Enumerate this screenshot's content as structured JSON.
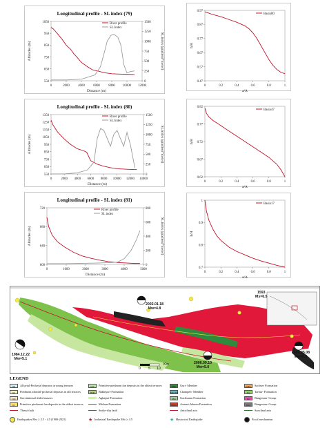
{
  "chart_data": [
    {
      "type": "line",
      "title": "Longitudinal profile - SL index (79)",
      "xlabel": "Distance (m)",
      "ylabel": "Altitudes (m)",
      "y2label": "SL index (gradient*meter)",
      "xlim": [
        0,
        12000
      ],
      "ylim": [
        550,
        1100
      ],
      "y2lim": [
        0,
        1500
      ],
      "xticks": [
        "0",
        "2000",
        "4000",
        "6000",
        "8000",
        "10000",
        "12000"
      ],
      "yticks": [
        "550",
        "650",
        "750",
        "850",
        "950",
        "1050"
      ],
      "y2ticks": [
        "0",
        "250",
        "500",
        "750",
        "1000",
        "1250",
        "1500"
      ],
      "legend": [
        "River profile",
        "SL Index"
      ],
      "colors": {
        "River profile": "#c0142a",
        "SL Index": "#9b9b9b"
      },
      "series": [
        {
          "name": "River profile",
          "axis": "left",
          "x": [
            0,
            300,
            800,
            1500,
            2000,
            2600,
            3000,
            3400,
            4000,
            4800,
            5500,
            6200,
            7000,
            8000,
            9000,
            10000,
            11000
          ],
          "y": [
            1045,
            1030,
            990,
            930,
            880,
            840,
            800,
            770,
            720,
            680,
            650,
            640,
            625,
            615,
            612,
            610,
            608
          ]
        },
        {
          "name": "SL Index",
          "axis": "right",
          "x": [
            0,
            2000,
            4000,
            5000,
            5800,
            6500,
            7000,
            7400,
            7900,
            8300,
            8800,
            9200,
            9600,
            10000,
            10400,
            11000
          ],
          "y": [
            20,
            20,
            40,
            100,
            150,
            350,
            700,
            1000,
            1150,
            1170,
            1100,
            900,
            400,
            200,
            230,
            250
          ]
        }
      ]
    },
    {
      "type": "line",
      "title": "Longitudinal profile - SL index (80)",
      "xlabel": "Distance (m)",
      "ylabel": "Altitudes (m)",
      "y2label": "SL index (gradient*meter)",
      "xlim": [
        0,
        14000
      ],
      "ylim": [
        550,
        1400
      ],
      "y2lim": [
        0,
        1500
      ],
      "xticks": [
        "0",
        "2000",
        "4000",
        "6000",
        "8000",
        "10000",
        "12000",
        "14000"
      ],
      "yticks": [
        "550",
        "650",
        "750",
        "850",
        "950",
        "1050",
        "1150",
        "1250",
        "1350"
      ],
      "y2ticks": [
        "0",
        "250",
        "500",
        "750",
        "1000",
        "1250",
        "1500"
      ],
      "legend": [
        "River profile",
        "SL Index"
      ],
      "colors": {
        "River profile": "#c0142a",
        "SL Index": "#9b9b9b"
      },
      "series": [
        {
          "name": "River profile",
          "axis": "left",
          "x": [
            0,
            300,
            1000,
            2000,
            3000,
            4000,
            5000,
            5400,
            6000,
            7000,
            8000,
            9000,
            10000,
            11000,
            12000,
            13000
          ],
          "y": [
            1320,
            1250,
            1150,
            1050,
            970,
            910,
            880,
            860,
            740,
            690,
            660,
            640,
            625,
            620,
            615,
            612
          ]
        },
        {
          "name": "SL Index",
          "axis": "right",
          "x": [
            0,
            2000,
            4000,
            5500,
            6500,
            7000,
            7500,
            8000,
            8500,
            9000,
            9500,
            10000,
            10500,
            11000,
            11500,
            12000,
            12700
          ],
          "y": [
            0,
            0,
            30,
            100,
            300,
            900,
            1150,
            1100,
            900,
            700,
            1000,
            1100,
            900,
            700,
            1050,
            750,
            150
          ]
        }
      ]
    },
    {
      "type": "line",
      "title": "Longitudinal profile - SL index (81)",
      "xlabel": "Distance (m)",
      "ylabel": "Altitudes (m)",
      "y2label": "SL index (gradient*meter)",
      "xlim": [
        0,
        5500
      ],
      "ylim": [
        600,
        720
      ],
      "y2lim": [
        0,
        800
      ],
      "xticks": [
        "0",
        "1000",
        "2000",
        "3000",
        "4000",
        "5000"
      ],
      "yticks": [
        "600",
        "640",
        "680",
        "720"
      ],
      "y2ticks": [
        "0",
        "200",
        "400",
        "600",
        "800"
      ],
      "legend": [
        "River profile",
        "SL index"
      ],
      "colors": {
        "River profile": "#c0142a",
        "SL index": "#9b9b9b"
      },
      "series": [
        {
          "name": "River profile",
          "axis": "left",
          "x": [
            0,
            100,
            300,
            600,
            1000,
            1500,
            2000,
            2500,
            3000,
            3500,
            4000,
            4500,
            5000,
            5300
          ],
          "y": [
            700,
            680,
            662,
            648,
            637,
            626,
            618,
            613,
            609,
            606,
            604,
            603,
            602,
            602
          ]
        },
        {
          "name": "SL index",
          "axis": "right",
          "x": [
            0,
            1000,
            2000,
            3000,
            4000,
            4400,
            4800,
            5100,
            5300
          ],
          "y": [
            10,
            10,
            15,
            20,
            30,
            80,
            200,
            350,
            480
          ]
        }
      ]
    },
    {
      "type": "line",
      "xlabel": "a/A",
      "ylabel": "h/H",
      "xlim": [
        0,
        1
      ],
      "ylim": [
        0.47,
        0.97
      ],
      "xticks": [
        "0",
        "0.2",
        "0.4",
        "0.6",
        "0.8",
        "1"
      ],
      "yticks": [
        "0.47",
        "0.57",
        "0.67",
        "0.77",
        "0.87",
        "0.97"
      ],
      "legend": [
        "Basin80"
      ],
      "colors": {
        "Basin80": "#c0142a"
      },
      "series": [
        {
          "name": "Basin80",
          "x": [
            0,
            0.05,
            0.1,
            0.2,
            0.3,
            0.4,
            0.5,
            0.55,
            0.6,
            0.65,
            0.7,
            0.75,
            0.8,
            0.85,
            0.9,
            0.95,
            1.0
          ],
          "y": [
            0.96,
            0.95,
            0.94,
            0.925,
            0.905,
            0.885,
            0.86,
            0.84,
            0.81,
            0.77,
            0.72,
            0.67,
            0.62,
            0.58,
            0.55,
            0.53,
            0.52
          ]
        }
      ]
    },
    {
      "type": "line",
      "xlabel": "a/A",
      "ylabel": "h/H",
      "xlim": [
        0,
        1
      ],
      "ylim": [
        0.62,
        0.82
      ],
      "xticks": [
        "0",
        "0.2",
        "0.4",
        "0.6",
        "0.8",
        "1"
      ],
      "yticks": [
        "0.62",
        "0.67",
        "0.72",
        "0.77",
        "0.82"
      ],
      "legend": [
        "Basin47"
      ],
      "colors": {
        "Basin47": "#c0142a"
      },
      "series": [
        {
          "name": "Basin47",
          "x": [
            0,
            0.02,
            0.05,
            0.1,
            0.2,
            0.3,
            0.4,
            0.5,
            0.6,
            0.7,
            0.8,
            0.9,
            0.95,
            1.0
          ],
          "y": [
            0.815,
            0.8,
            0.79,
            0.78,
            0.765,
            0.75,
            0.735,
            0.72,
            0.705,
            0.69,
            0.675,
            0.655,
            0.64,
            0.62
          ]
        }
      ]
    },
    {
      "type": "line",
      "xlabel": "a/A",
      "ylabel": "h/H",
      "xlim": [
        0,
        1
      ],
      "ylim": [
        0.7,
        1
      ],
      "xticks": [
        "0",
        "0.2",
        "0.4",
        "0.6",
        "0.8",
        "1"
      ],
      "yticks": [
        "0.7",
        "0.8",
        "0.9",
        "1"
      ],
      "legend": [
        "Basin17"
      ],
      "colors": {
        "Basin17": "#c0142a"
      },
      "series": [
        {
          "name": "Basin17",
          "x": [
            0,
            0.02,
            0.05,
            0.1,
            0.15,
            0.2,
            0.3,
            0.4,
            0.5,
            0.6,
            0.7,
            0.8,
            0.9,
            1.0
          ],
          "y": [
            1.0,
            0.95,
            0.91,
            0.87,
            0.84,
            0.82,
            0.79,
            0.77,
            0.755,
            0.74,
            0.728,
            0.718,
            0.708,
            0.7
          ]
        }
      ]
    }
  ],
  "map": {
    "earthquake_labels": [
      {
        "date": "2002.01.18",
        "mag": "Mw=4.8"
      },
      {
        "date": "1593",
        "mag": "Ms=6.5"
      },
      {
        "date": "1984.12.22",
        "mag": "Mw=5.1"
      },
      {
        "date": "2006.09.10",
        "mag": "Mw=5.0"
      },
      {
        "date": "2003.05.08",
        "mag": "Mw=5.0"
      }
    ],
    "scale_label": "Km",
    "scale_ticks": [
      "0",
      "5",
      "10"
    ],
    "colors": {
      "pasture": "#7ec24b",
      "formation": "#e2183b",
      "terrace": "#c7e7a0",
      "dark": "#222222",
      "sea": "#ffffff"
    }
  },
  "legend": {
    "title": "LEGEND",
    "items": [
      {
        "code": "Qal",
        "text": "Alluvial-Proluvial deposits in young terraces",
        "color": "#d8f0f7"
      },
      {
        "code": "Q2",
        "text": "Piedmont alluvial-proluvial deposits in old terraces",
        "color": "#f3f3c8"
      },
      {
        "code": "Qgs",
        "text": "Gravitational slided masses",
        "color": "#f5e3c8"
      },
      {
        "code": "Q1",
        "text": "Primitive piedmont fan deposits in the oldest terraces",
        "color": "#fce06d"
      },
      {
        "code": "",
        "text": "Thrust fault",
        "color": "#c0142a"
      },
      {
        "code": "Q1b",
        "text": "Primitive piedmont fan deposits in the oldest terraces",
        "color": "#bfe5b2"
      },
      {
        "code": "PlQb",
        "text": "Bakhtyari-Formation",
        "color": "#b5cf85"
      },
      {
        "code": "",
        "text": "Aghajari-Formation",
        "color": "#7ec24b"
      },
      {
        "code": "",
        "text": "Mishan-Formation",
        "color": "#e2183b"
      },
      {
        "code": "",
        "text": "Strike-slip fault",
        "color": "#555555"
      },
      {
        "code": "Mgu",
        "text": "Guri- Member",
        "color": "#2f8a3c"
      },
      {
        "code": "Mpcchm",
        "text": "Champeh- Member",
        "color": "#6ab3c0"
      },
      {
        "code": "Mgs",
        "text": "Gachsaran Formation",
        "color": "#a6c9a0"
      },
      {
        "code": "OMas",
        "text": "Asmari-Jahrom Formation",
        "color": "#d23d2b"
      },
      {
        "code": "",
        "text": "Anticlinal axis",
        "color": "#c0142a"
      },
      {
        "code": "KPEs",
        "text": "Sachun- Formation",
        "color": "#f2a65f"
      },
      {
        "code": "Kt",
        "text": "Tarbur- Formation",
        "color": "#8fd16e"
      },
      {
        "code": "Ks",
        "text": "Bangestan- Group",
        "color": "#e04fa8"
      },
      {
        "code": "Kbg",
        "text": "Bangestan- Group",
        "color": "#7a7a7a"
      },
      {
        "code": "",
        "text": "Synclinal axis",
        "color": "#2b6b2b"
      }
    ],
    "bottom": [
      {
        "text": "Earthquakes Mw ≥ 2.5 - 4.5 (1900-2021)"
      },
      {
        "text": "Industrial Earthquake Mw ≥ 4.5"
      },
      {
        "text": "Hystorical Earthquake"
      },
      {
        "text": "Focal mechanism"
      }
    ]
  }
}
